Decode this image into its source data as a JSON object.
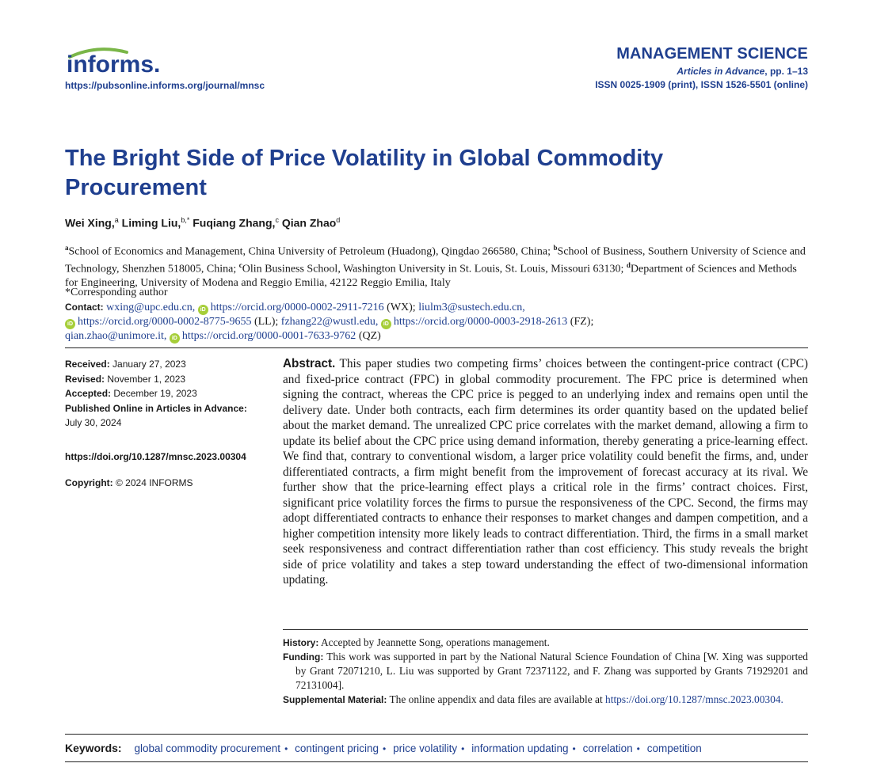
{
  "header": {
    "logo_text": "informs.",
    "journal_url": "https://pubsonline.informs.org/journal/mnsc",
    "journal_name": "MANAGEMENT SCIENCE",
    "pages_italic": "Articles in Advance",
    "pages_rest": ", pp. 1–13",
    "issn": "ISSN 0025-1909 (print), ISSN 1526-5501 (online)"
  },
  "title": "The Bright Side of Price Volatility in Global Commodity Procurement",
  "authors": [
    {
      "name": "Wei Xing,",
      "sup": "a"
    },
    {
      "name": "Liming Liu,",
      "sup": "b,*"
    },
    {
      "name": "Fuqiang Zhang,",
      "sup": "c"
    },
    {
      "name": "Qian Zhao",
      "sup": "d"
    }
  ],
  "affiliations": {
    "a": "School of Economics and Management, China University of Petroleum (Huadong), Qingdao 266580, China;",
    "b": "School of Business, Southern University of Science and Technology, Shenzhen 518005, China;",
    "c": "Olin Business School, Washington University in St. Louis, St. Louis, Missouri 63130;",
    "d": "Department of Sciences and Methods for Engineering, University of Modena and Reggio Emilia, 42122 Reggio Emilia, Italy",
    "corresponding": "*Corresponding author"
  },
  "contact": {
    "label": "Contact:",
    "email1": "wxing@upc.edu.cn,",
    "orcid1": "https://orcid.org/0000-0002-2911-7216",
    "tag1": " (WX);",
    "email2": "liulm3@sustech.edu.cn,",
    "orcid2": "https://orcid.org/0000-0002-8775-9655",
    "tag2": " (LL);",
    "email3": "fzhang22@wustl.edu,",
    "orcid3": "https://orcid.org/0000-0003-2918-2613",
    "tag3": " (FZ);",
    "email4": "qian.zhao@unimore.it,",
    "orcid4": "https://orcid.org/0000-0001-7633-9762",
    "tag4": " (QZ)",
    "orcid_glyph": "iD"
  },
  "meta": {
    "received_label": "Received:",
    "received": "January 27, 2023",
    "revised_label": "Revised:",
    "revised": "November 1, 2023",
    "accepted_label": "Accepted:",
    "accepted": "December 19, 2023",
    "published_label": "Published Online in Articles in Advance:",
    "published": "July 30, 2024",
    "doi": "https://doi.org/10.1287/mnsc.2023.00304",
    "copyright_label": "Copyright:",
    "copyright": "© 2024 INFORMS"
  },
  "abstract": {
    "label": "Abstract.",
    "text": "This paper studies two competing firms’ choices between the contingent-price contract (CPC) and fixed-price contract (FPC) in global commodity procurement. The FPC price is determined when signing the contract, whereas the CPC price is pegged to an underlying index and remains open until the delivery date. Under both contracts, each firm determines its order quantity based on the updated belief about the market demand. The unrealized CPC price correlates with the market demand, allowing a firm to update its belief about the CPC price using demand information, thereby generating a price-learning effect. We find that, contrary to conventional wisdom, a larger price volatility could benefit the firms, and, under differentiated contracts, a firm might benefit from the improvement of forecast accuracy at its rival. We further show that the price-learning effect plays a critical role in the firms’ contract choices. First, significant price volatility forces the firms to pursue the responsiveness of the CPC. Second, the firms may adopt differentiated contracts to enhance their responses to market changes and dampen competition, and a higher competition intensity more likely leads to contract differentiation. Third, the firms in a small market seek responsiveness and contract differentiation rather than cost efficiency. This study reveals the bright side of price volatility and takes a step toward understanding the effect of two-dimensional information updating."
  },
  "history": {
    "history_label": "History:",
    "history": "Accepted by Jeannette Song, operations management.",
    "funding_label": "Funding:",
    "funding": "This work was supported in part by the National Natural Science Foundation of China [W. Xing was supported by Grant 72071210, L. Liu was supported by Grant 72371122, and F. Zhang was supported by Grants 71929201 and 72131004].",
    "supplemental_label": "Supplemental Material:",
    "supplemental": "The online appendix and data files are available at",
    "supplemental_link": "https://doi.org/10.1287/mnsc.2023.00304."
  },
  "keywords": {
    "label": "Keywords:",
    "items": [
      "global commodity procurement",
      "contingent pricing",
      "price volatility",
      "information updating",
      "correlation",
      "competition"
    ],
    "separator": "•"
  },
  "colors": {
    "brand_blue": "#1f3f8f",
    "orcid_green": "#a6ce39",
    "logo_green": "#7ab648"
  }
}
